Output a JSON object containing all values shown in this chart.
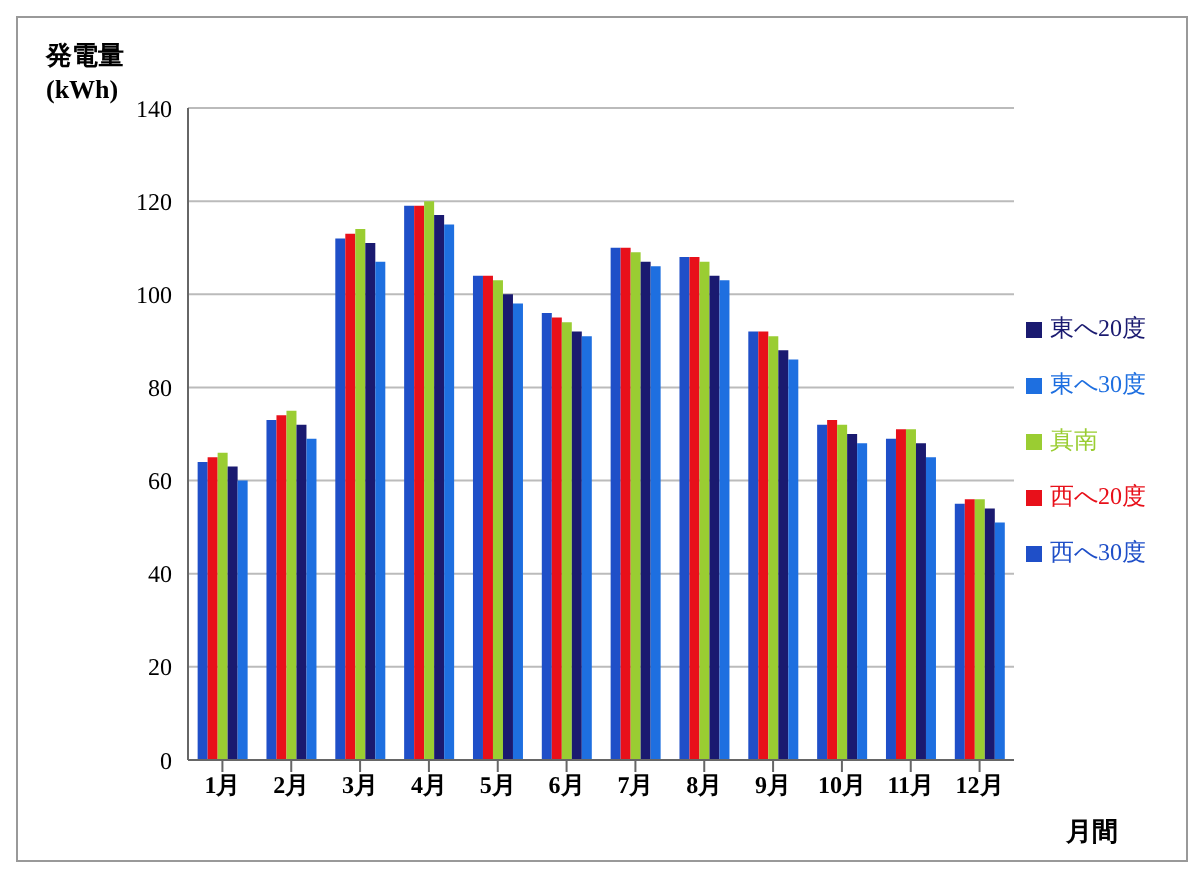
{
  "chart_data": {
    "type": "bar",
    "ylabel": "発電量(kWh)",
    "xlabel": "月間",
    "categories": [
      "1月",
      "2月",
      "3月",
      "4月",
      "5月",
      "6月",
      "7月",
      "8月",
      "9月",
      "10月",
      "11月",
      "12月"
    ],
    "series": [
      {
        "name": "西へ30度",
        "color": "#1f4fc8",
        "values": [
          64,
          73,
          112,
          119,
          104,
          96,
          110,
          108,
          92,
          72,
          69,
          55
        ]
      },
      {
        "name": "西へ20度",
        "color": "#e8101a",
        "values": [
          65,
          74,
          113,
          119,
          104,
          95,
          110,
          108,
          92,
          73,
          71,
          56
        ]
      },
      {
        "name": "真南",
        "color": "#9acd32",
        "values": [
          66,
          75,
          114,
          120,
          103,
          94,
          109,
          107,
          91,
          72,
          71,
          56
        ]
      },
      {
        "name": "東へ20度",
        "color": "#1a1a70",
        "values": [
          63,
          72,
          111,
          117,
          100,
          92,
          107,
          104,
          88,
          70,
          68,
          54
        ]
      },
      {
        "name": "東へ30度",
        "color": "#1e6fe0",
        "values": [
          60,
          69,
          107,
          115,
          98,
          91,
          106,
          103,
          86,
          68,
          65,
          51
        ]
      }
    ],
    "ylim": [
      0,
      140
    ],
    "yticks": [
      0,
      20,
      40,
      60,
      80,
      100,
      120,
      140
    ],
    "grid": "y",
    "legend": "right"
  }
}
